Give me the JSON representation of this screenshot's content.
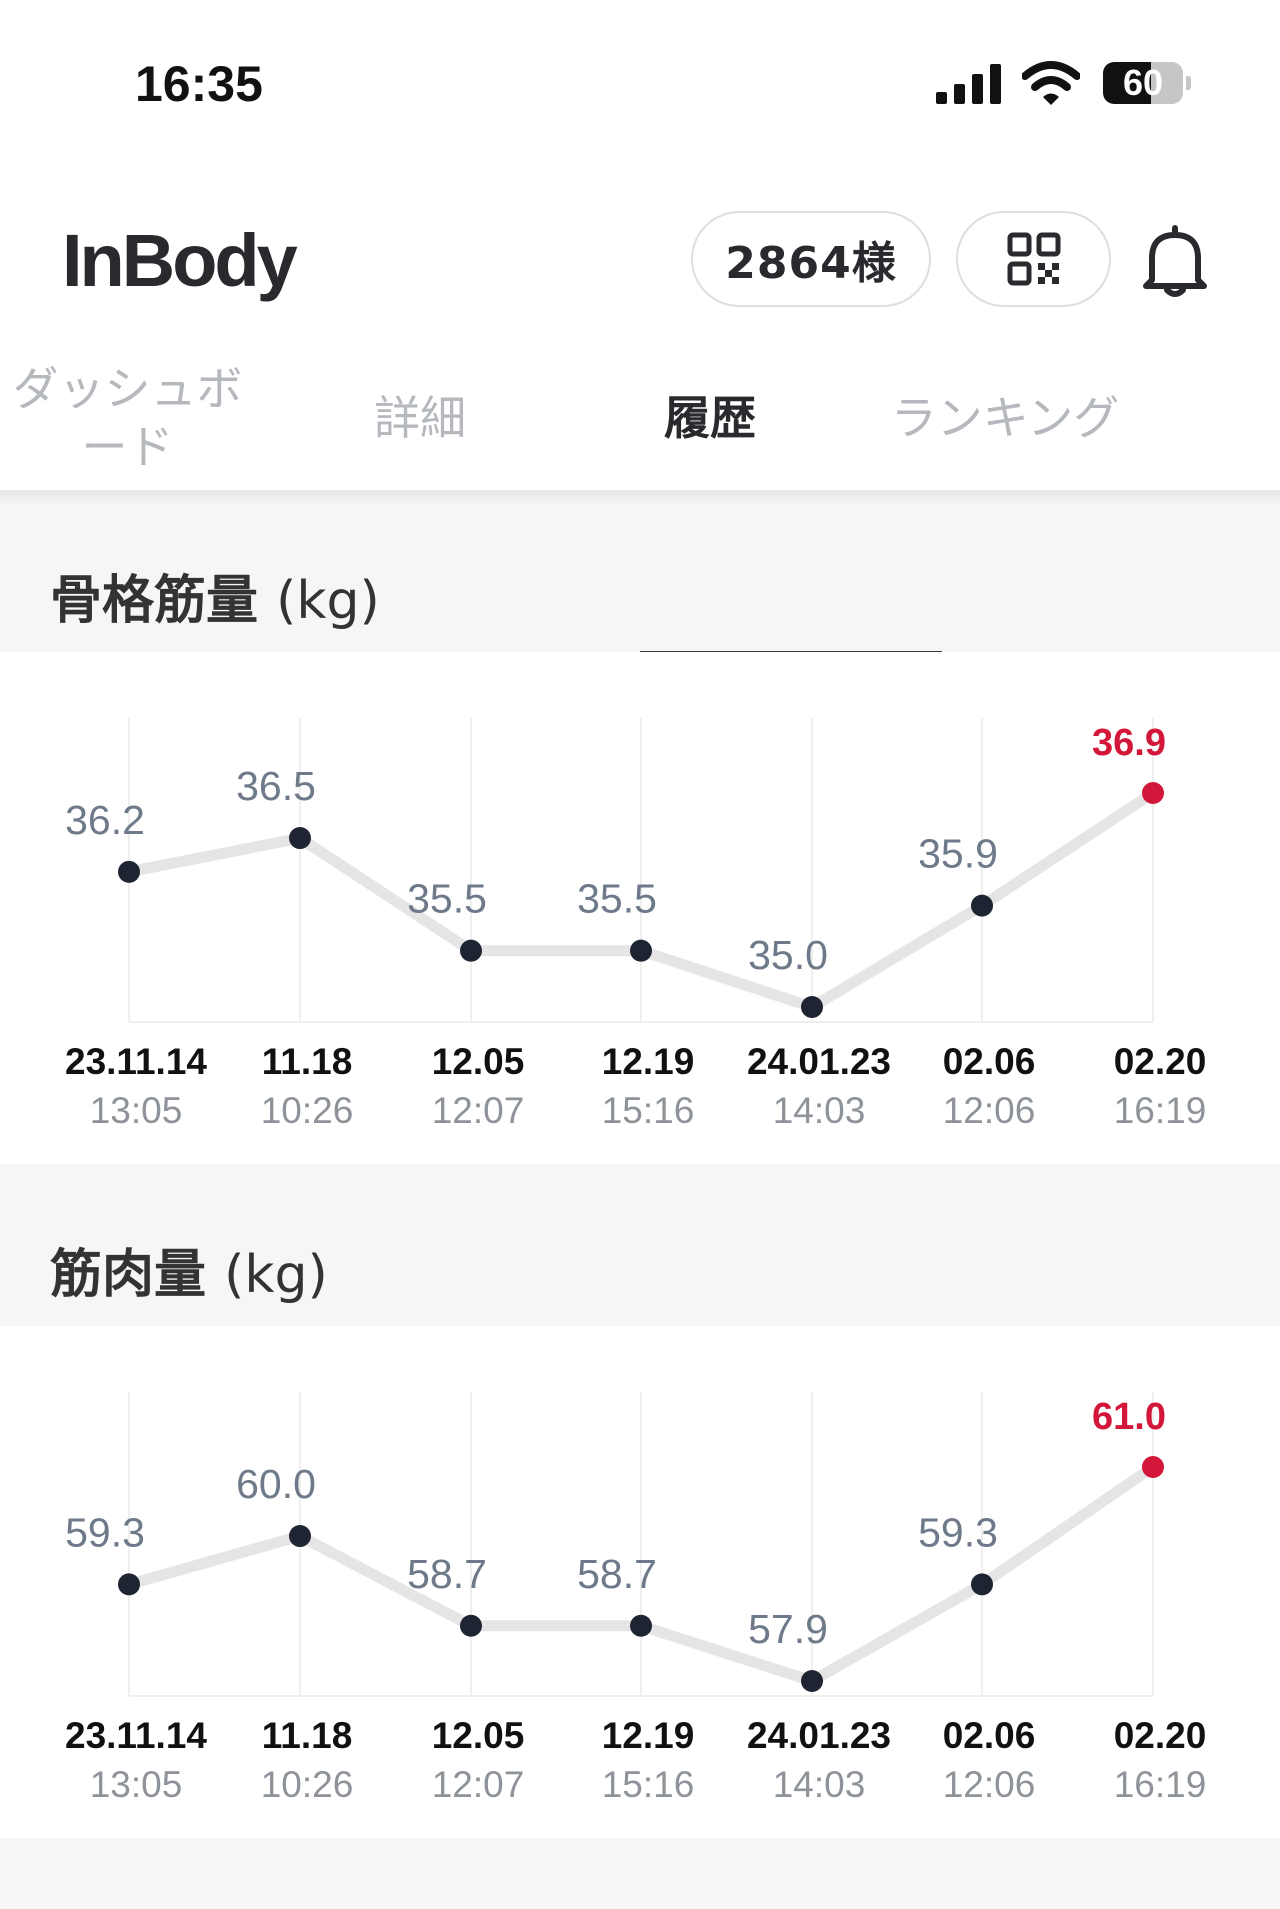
{
  "status_bar": {
    "time": "16:35",
    "battery": "60",
    "battery_level": 0.6
  },
  "header": {
    "logo": "InBody",
    "points": "2864様",
    "icons": [
      "qr-code-icon",
      "bell-icon"
    ]
  },
  "tabs": [
    {
      "label": "ダッシュボード",
      "active": false
    },
    {
      "label": "詳細",
      "active": false
    },
    {
      "label": "履歴",
      "active": true
    },
    {
      "label": "ランキング",
      "active": false
    }
  ],
  "colors": {
    "accent_latest": "#d3173a",
    "point": "#1f2433",
    "line": "#e5e5e5",
    "value": "#6e7a8a"
  },
  "dates": [
    {
      "date": "23.11.14",
      "time": "13:05"
    },
    {
      "date": "11.18",
      "time": "10:26"
    },
    {
      "date": "12.05",
      "time": "12:07"
    },
    {
      "date": "12.19",
      "time": "15:16"
    },
    {
      "date": "24.01.23",
      "time": "14:03"
    },
    {
      "date": "02.06",
      "time": "12:06"
    },
    {
      "date": "02.20",
      "time": "16:19"
    }
  ],
  "chart_data": [
    {
      "type": "line",
      "title": "骨格筋量",
      "unit": "(kg)",
      "categories": [
        "23.11.14 13:05",
        "11.18 10:26",
        "12.05 12:07",
        "12.19 15:16",
        "24.01.23 14:03",
        "02.06 12:06",
        "02.20 16:19"
      ],
      "values": [
        36.2,
        36.5,
        35.5,
        35.5,
        35.0,
        35.9,
        36.9
      ],
      "labels": [
        "36.2",
        "36.5",
        "35.5",
        "35.5",
        "35.0",
        "35.9",
        "36.9"
      ],
      "highlight_index": 6
    },
    {
      "type": "line",
      "title": "筋肉量",
      "unit": "(kg)",
      "categories": [
        "23.11.14 13:05",
        "11.18 10:26",
        "12.05 12:07",
        "12.19 15:16",
        "24.01.23 14:03",
        "02.06 12:06",
        "02.20 16:19"
      ],
      "values": [
        59.3,
        60.0,
        58.7,
        58.7,
        57.9,
        59.3,
        61.0
      ],
      "labels": [
        "59.3",
        "60.0",
        "58.7",
        "58.7",
        "57.9",
        "59.3",
        "61.0"
      ],
      "highlight_index": 6
    }
  ]
}
